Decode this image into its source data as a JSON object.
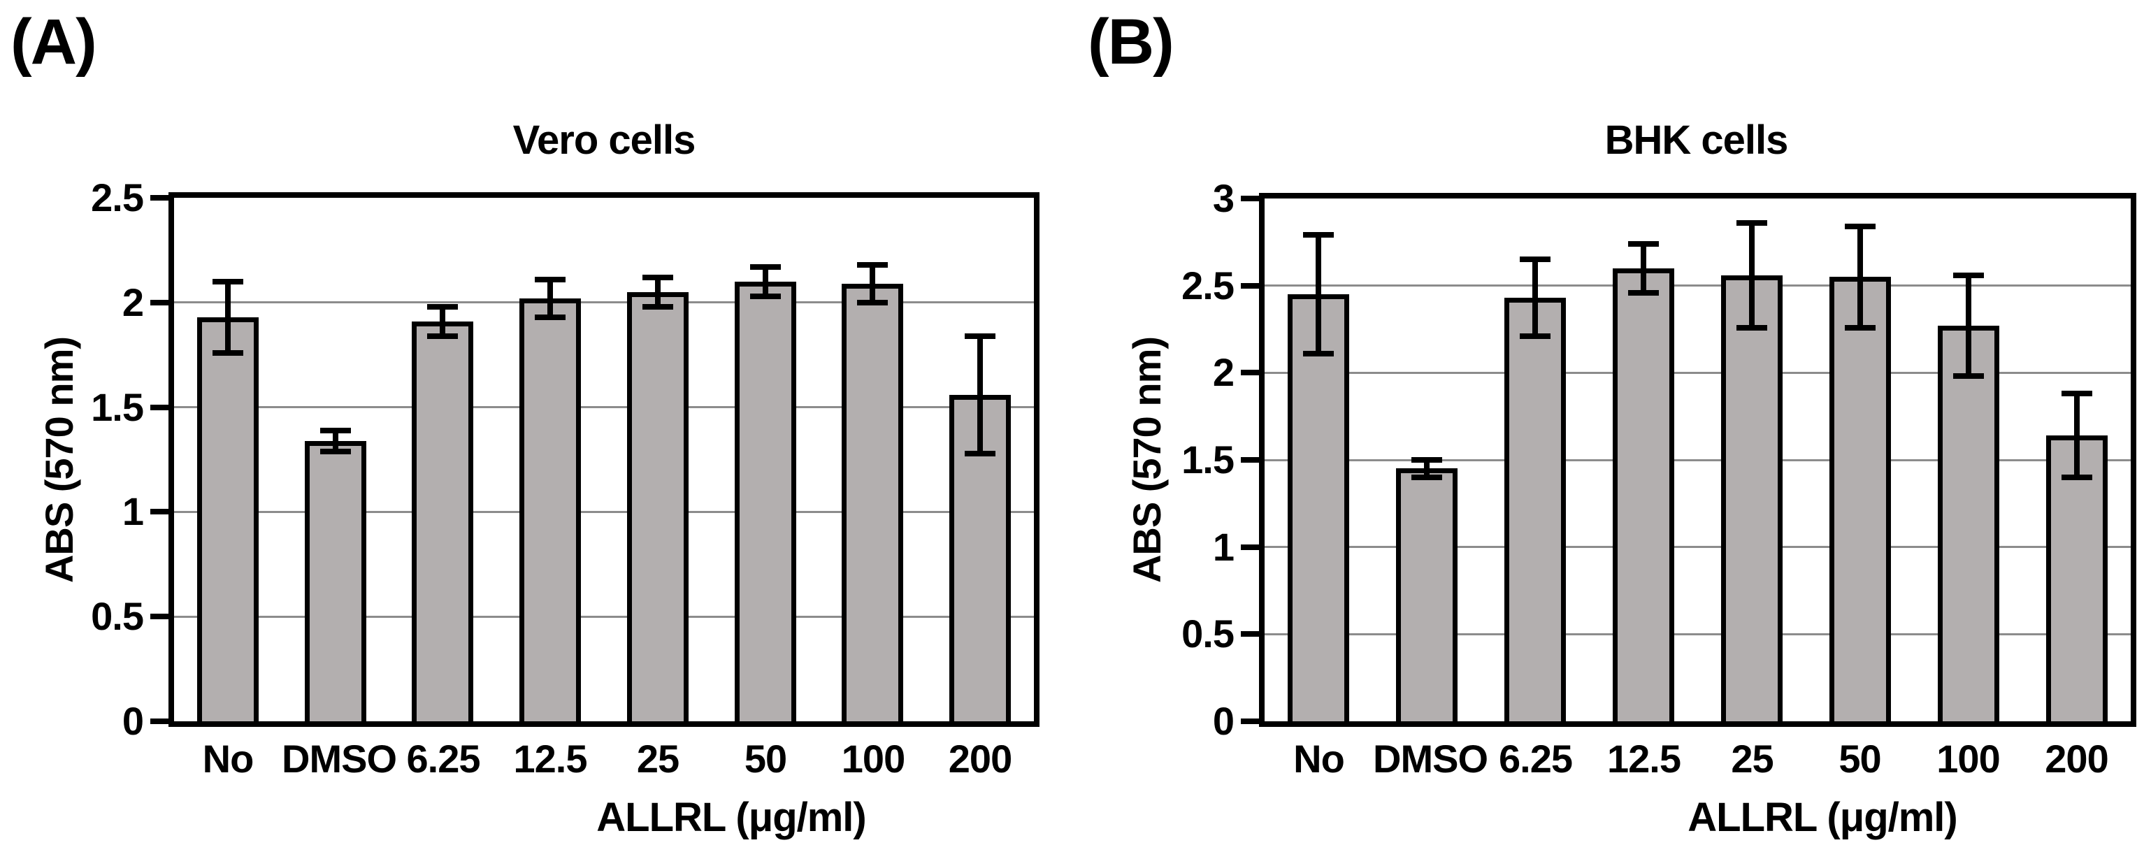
{
  "colors": {
    "bar_fill": "#b3afaf",
    "bar_border": "#000000",
    "gridline": "#8c8c8c",
    "axis": "#000000",
    "text": "#000000",
    "background": "#ffffff"
  },
  "chart_data": [
    {
      "type": "bar",
      "panel_label": "(A)",
      "title": "Vero cells",
      "ylabel": "ABS (570 nm)",
      "xlabel": "ALLRL (μg/ml)",
      "categories": [
        "No",
        "DMSO",
        "6.25",
        "12.5",
        "25",
        "50",
        "100",
        "200"
      ],
      "values": [
        1.93,
        1.34,
        1.91,
        2.02,
        2.05,
        2.1,
        2.09,
        1.56
      ],
      "errors": [
        0.17,
        0.05,
        0.07,
        0.09,
        0.07,
        0.07,
        0.09,
        0.28
      ],
      "ylim": [
        0,
        2.5
      ],
      "ytick_values": [
        0,
        0.5,
        1,
        1.5,
        2,
        2.5
      ],
      "ytick_labels": [
        "0",
        "0.5",
        "1",
        "1.5",
        "2",
        "2.5"
      ],
      "grid": true,
      "legend": false,
      "bar_color": "#b3afaf"
    },
    {
      "type": "bar",
      "panel_label": "(B)",
      "title": "BHK cells",
      "ylabel": "ABS (570 nm)",
      "xlabel": "ALLRL (μg/ml)",
      "categories": [
        "No",
        "DMSO",
        "6.25",
        "12.5",
        "25",
        "50",
        "100",
        "200"
      ],
      "values": [
        2.45,
        1.45,
        2.43,
        2.6,
        2.56,
        2.55,
        2.27,
        1.64
      ],
      "errors": [
        0.34,
        0.05,
        0.22,
        0.14,
        0.3,
        0.29,
        0.29,
        0.24
      ],
      "ylim": [
        0,
        3
      ],
      "ytick_values": [
        0,
        0.5,
        1,
        1.5,
        2,
        2.5,
        3
      ],
      "ytick_labels": [
        "0",
        "0.5",
        "1",
        "1.5",
        "2",
        "2.5",
        "3"
      ],
      "grid": true,
      "legend": false,
      "bar_color": "#b3afaf"
    }
  ]
}
